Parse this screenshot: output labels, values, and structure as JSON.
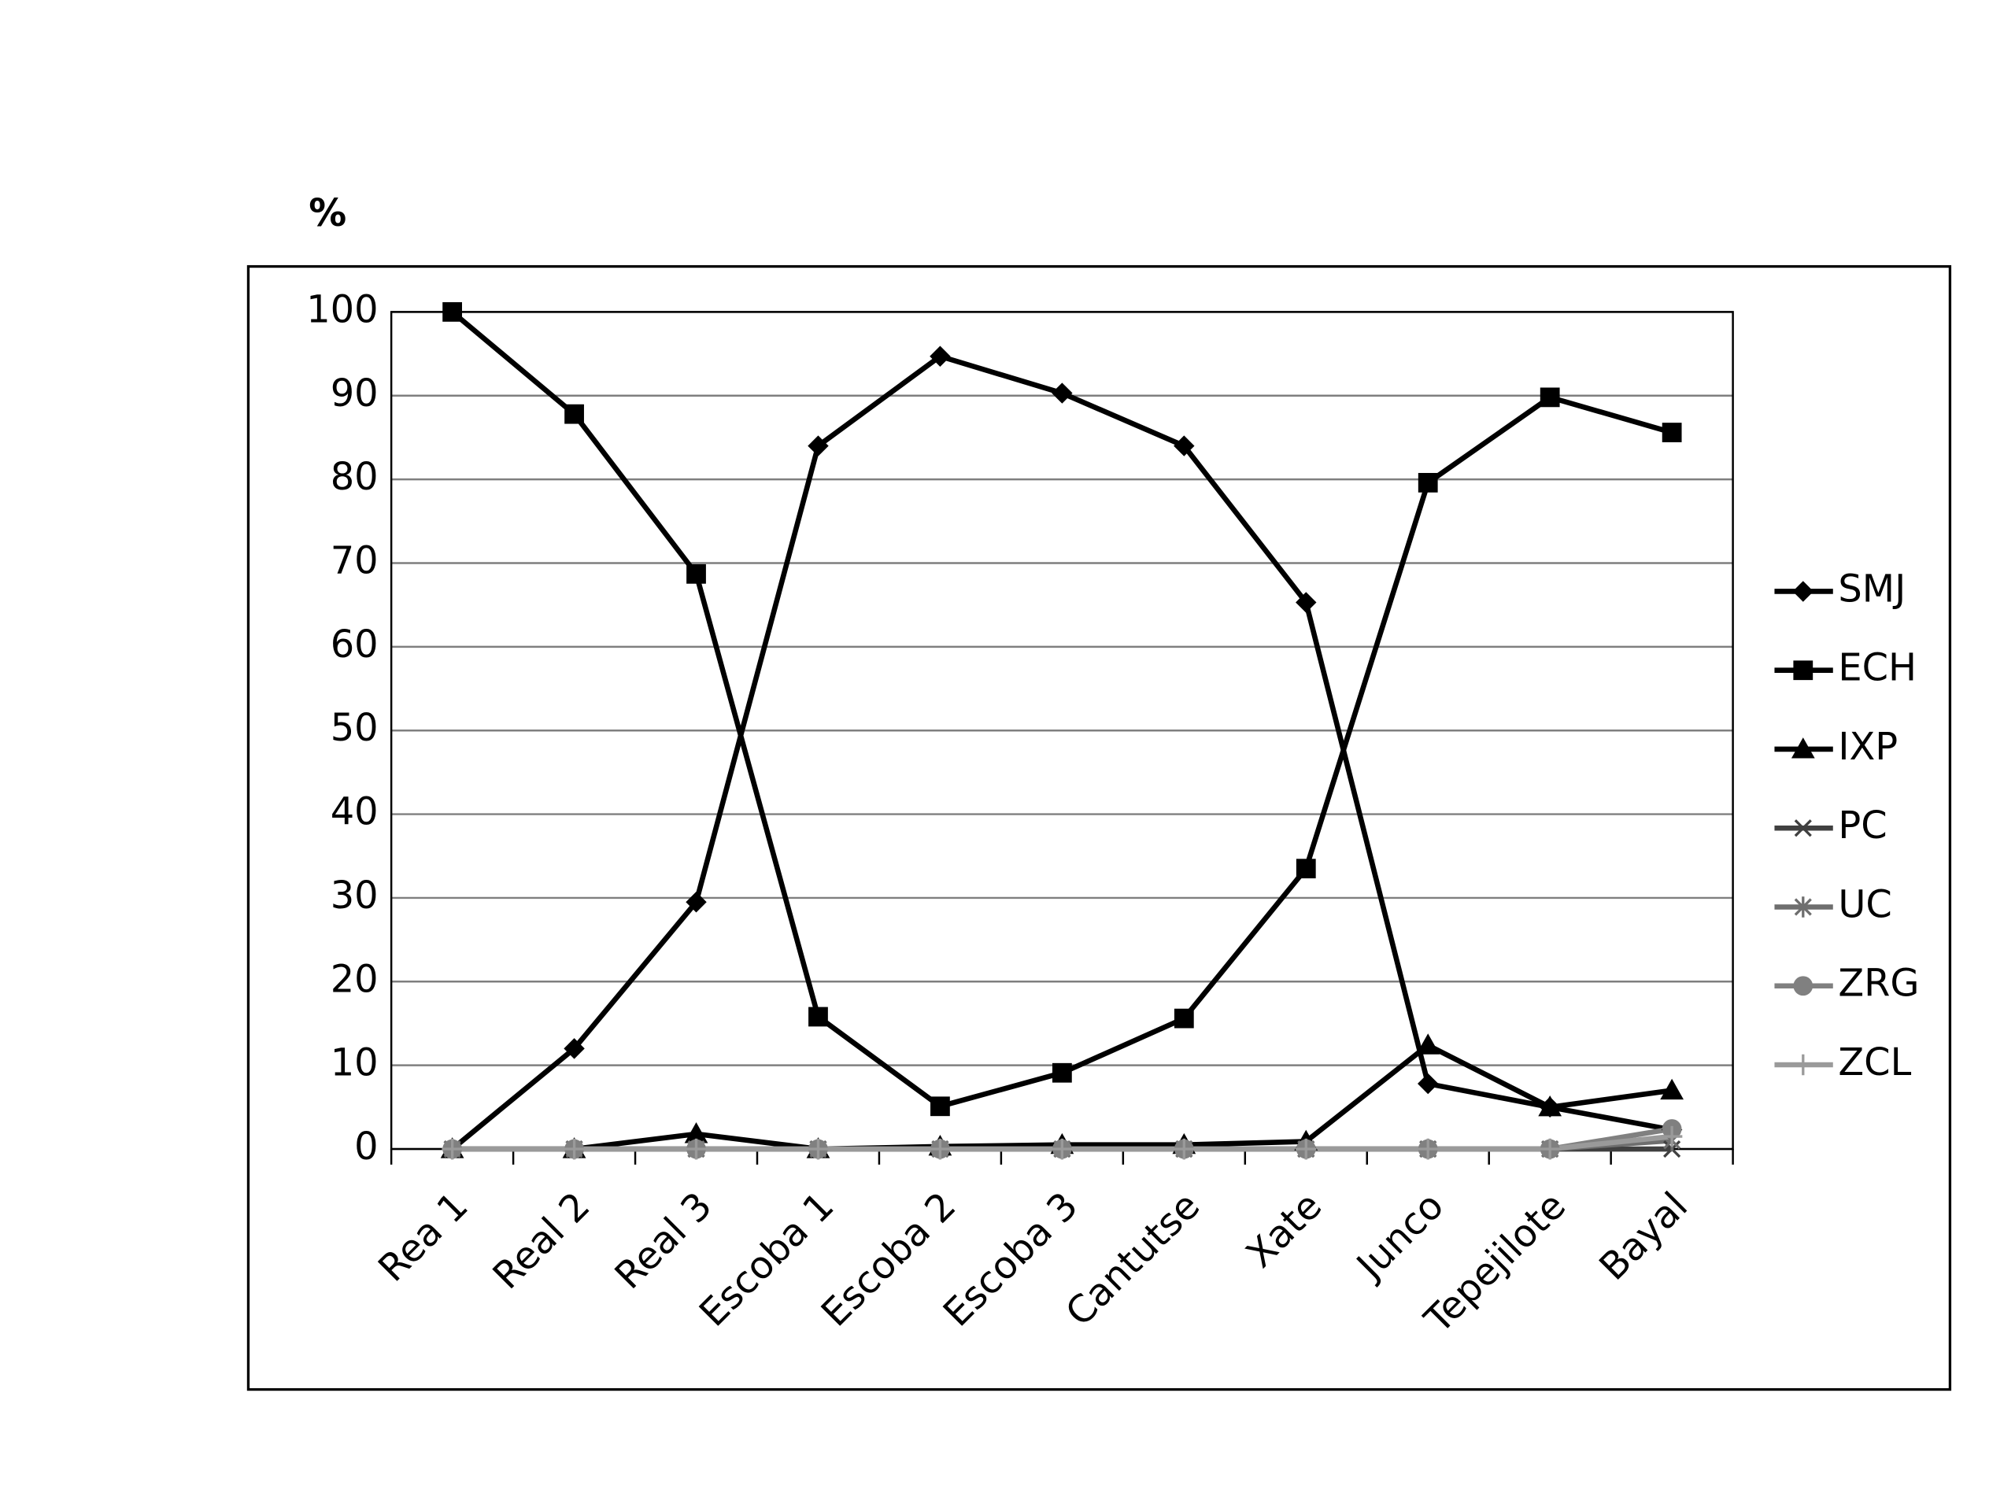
{
  "chart_data": {
    "type": "line",
    "ylabel": "%",
    "categories": [
      "Rea 1",
      "Real 2",
      "Real 3",
      "Escoba 1",
      "Escoba 2",
      "Escoba 3",
      "Cantutse",
      "Xate",
      "Junco",
      "Tepejilote",
      "Bayal"
    ],
    "series": [
      {
        "name": "SMJ",
        "color": "#000000",
        "marker": "diamond",
        "values": [
          0,
          12,
          29.5,
          84,
          94.7,
          90.3,
          84,
          65.3,
          7.8,
          5,
          2.3
        ]
      },
      {
        "name": "ECH",
        "color": "#000000",
        "marker": "square",
        "values": [
          100,
          87.8,
          68.7,
          15.8,
          5.1,
          9.1,
          15.6,
          33.5,
          79.6,
          89.8,
          85.6
        ]
      },
      {
        "name": "IXP",
        "color": "#000000",
        "marker": "triangle",
        "values": [
          0,
          0,
          1.8,
          0,
          0.3,
          0.5,
          0.5,
          0.9,
          12.4,
          5,
          7
        ]
      },
      {
        "name": "PC",
        "color": "#404040",
        "marker": "x",
        "values": [
          0,
          0,
          0,
          0,
          0,
          0,
          0,
          0,
          0,
          0,
          0
        ]
      },
      {
        "name": "UC",
        "color": "#6e6e6e",
        "marker": "star",
        "values": [
          0,
          0,
          0,
          0,
          0,
          0,
          0,
          0,
          0,
          0,
          1
        ]
      },
      {
        "name": "ZRG",
        "color": "#808080",
        "marker": "circle",
        "values": [
          0,
          0,
          0,
          0,
          0,
          0,
          0,
          0,
          0,
          0,
          2.4
        ]
      },
      {
        "name": "ZCL",
        "color": "#9a9a9a",
        "marker": "plus",
        "values": [
          0,
          0,
          0,
          0,
          0,
          0,
          0,
          0,
          0,
          0,
          1.5
        ]
      }
    ],
    "ylim": [
      0,
      100
    ],
    "yticks": [
      0,
      10,
      20,
      30,
      40,
      50,
      60,
      70,
      80,
      90,
      100
    ],
    "grid": true,
    "legend": "right"
  }
}
